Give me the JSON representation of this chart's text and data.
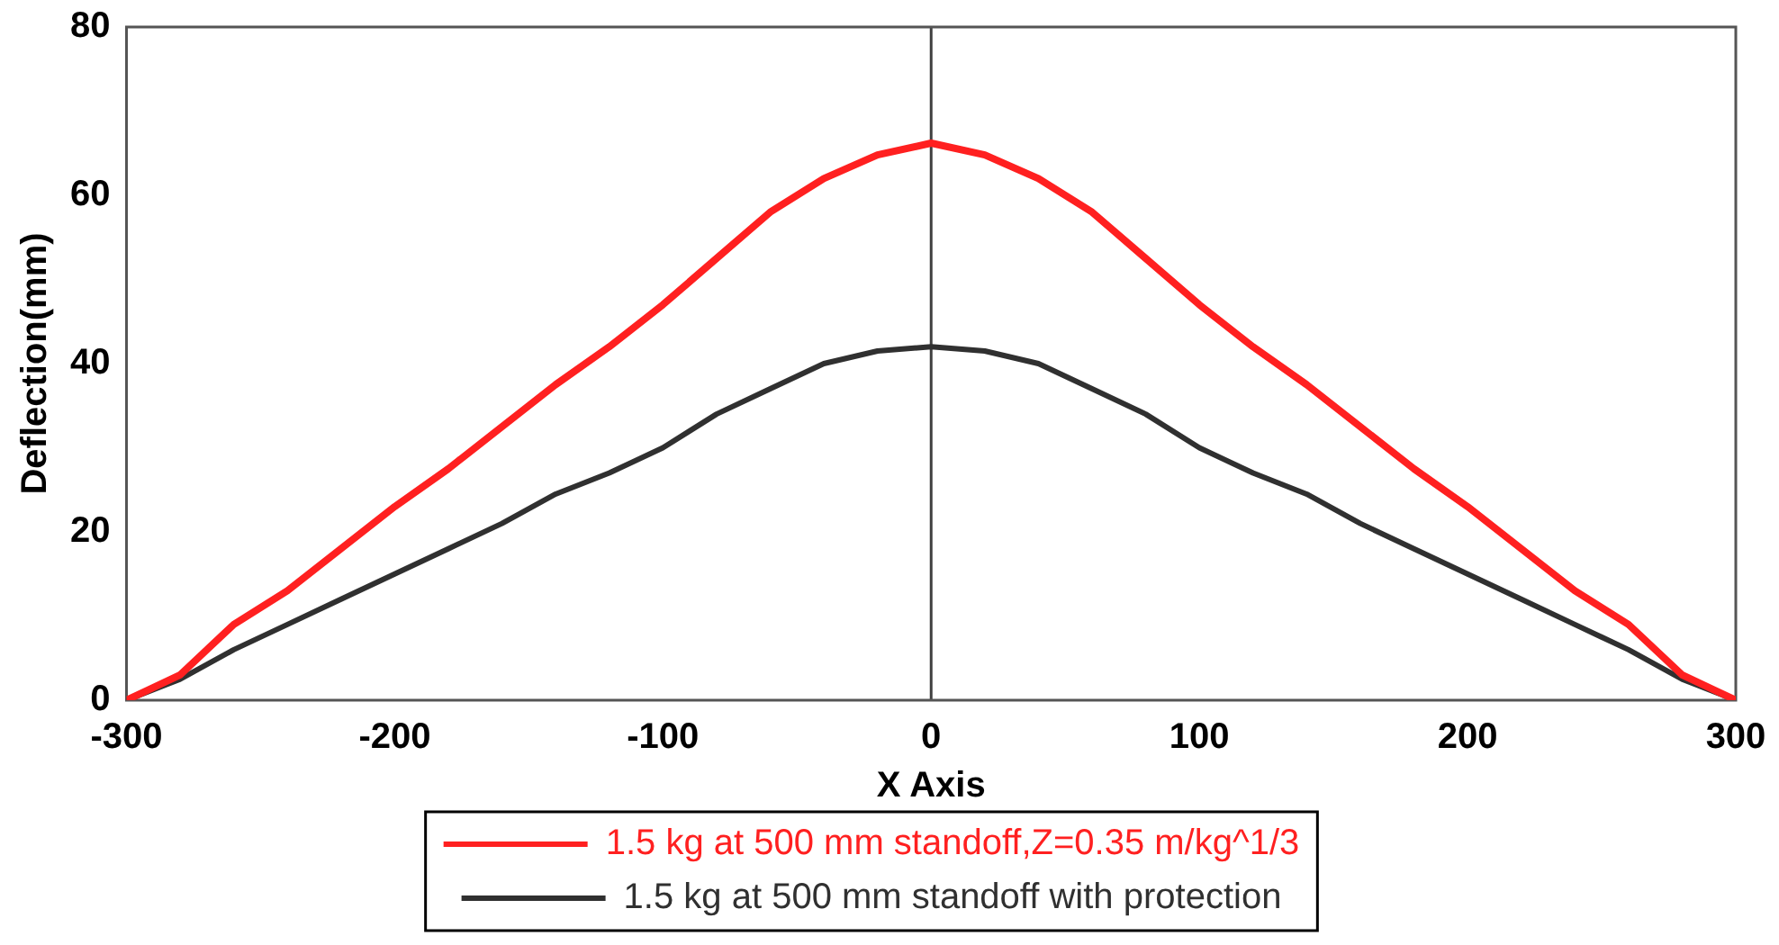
{
  "chart_data": {
    "type": "line",
    "xlabel": "X Axis",
    "ylabel": "Deflection(mm)",
    "xlim": [
      -300,
      300
    ],
    "xticks": [
      -300,
      -200,
      -100,
      0,
      100,
      200,
      300
    ],
    "ylim": [
      0,
      80
    ],
    "yticks": [
      0,
      20,
      40,
      60,
      80
    ],
    "x": [
      -300,
      -280,
      -260,
      -240,
      -220,
      -200,
      -180,
      -160,
      -140,
      -120,
      -100,
      -80,
      -60,
      -40,
      -20,
      0,
      20,
      40,
      60,
      80,
      100,
      120,
      140,
      160,
      180,
      200,
      220,
      240,
      260,
      280,
      300
    ],
    "series": [
      {
        "name": "1.5 kg at 500 mm standoff,Z=0.35 m/kg^1/3",
        "color": "#ff2020",
        "values": [
          0,
          3,
          9,
          13,
          18,
          23,
          27.5,
          32.5,
          37.5,
          42,
          47,
          52.5,
          58,
          62,
          64.8,
          66.2,
          64.8,
          62,
          58,
          52.5,
          47,
          42,
          37.5,
          32.5,
          27.5,
          23,
          18,
          13,
          9,
          3,
          0
        ]
      },
      {
        "name": "1.5 kg at 500 mm standoff with protection",
        "color": "#303030",
        "values": [
          0,
          2.5,
          6,
          9,
          12,
          15,
          18,
          21,
          24.5,
          27,
          30,
          34,
          37,
          40,
          41.5,
          42,
          41.5,
          40,
          37,
          34,
          30,
          27,
          24.5,
          21,
          18,
          15,
          12,
          9,
          6,
          2.5,
          0
        ]
      }
    ],
    "ref_lines": [
      {
        "axis": "x",
        "value": 0,
        "color": "#404040"
      }
    ],
    "grid": false,
    "legend": "bottom",
    "marker": "none",
    "line_style": "solid"
  }
}
